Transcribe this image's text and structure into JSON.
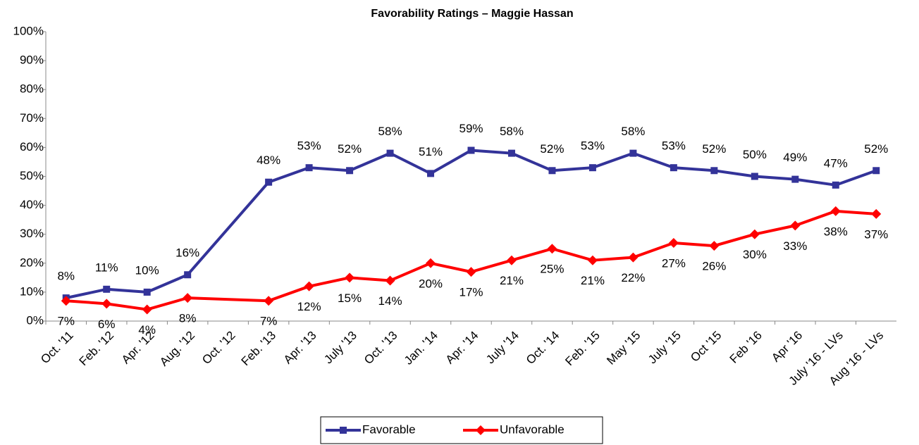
{
  "chart_data": {
    "type": "line",
    "title": "Favorability Ratings – Maggie Hassan",
    "categories": [
      "Oct. '11",
      "Feb. '12",
      "Apr. '12",
      "Aug. '12",
      "Oct. '12",
      "Feb. '13",
      "Apr. '13",
      "July '13",
      "Oct. '13",
      "Jan. '14",
      "Apr. '14",
      "July '14",
      "Oct. '14",
      "Feb. '15",
      "May '15",
      "July '15",
      "Oct '15",
      "Feb '16",
      "Apr '16",
      "July '16 - LVs",
      "Aug '16 - LVs"
    ],
    "series": [
      {
        "name": "Favorable",
        "color": "#333399",
        "marker": "square",
        "values": [
          8,
          11,
          10,
          16,
          null,
          48,
          53,
          52,
          58,
          51,
          59,
          58,
          52,
          53,
          58,
          53,
          52,
          50,
          49,
          47,
          52
        ],
        "value_labels": [
          "8%",
          "11%",
          "10%",
          "16%",
          null,
          "48%",
          "53%",
          "52%",
          "58%",
          "51%",
          "59%",
          "58%",
          "52%",
          "53%",
          "58%",
          "53%",
          "52%",
          "50%",
          "49%",
          "47%",
          "52%"
        ]
      },
      {
        "name": "Unfavorable",
        "color": "#ff0000",
        "marker": "diamond",
        "values": [
          7,
          6,
          4,
          8,
          null,
          7,
          12,
          15,
          14,
          20,
          17,
          21,
          25,
          21,
          22,
          27,
          26,
          30,
          33,
          38,
          37
        ],
        "value_labels": [
          "7%",
          "6%",
          "4%",
          "8%",
          null,
          "7%",
          "12%",
          "15%",
          "14%",
          "20%",
          "17%",
          "21%",
          "25%",
          "21%",
          "22%",
          "27%",
          "26%",
          "30%",
          "33%",
          "38%",
          "37%"
        ]
      }
    ],
    "ylim": [
      0,
      100
    ],
    "yticks": [
      {
        "value": 0,
        "label": "0%"
      },
      {
        "value": 10,
        "label": "10%"
      },
      {
        "value": 20,
        "label": "20%"
      },
      {
        "value": 30,
        "label": "30%"
      },
      {
        "value": 40,
        "label": "40%"
      },
      {
        "value": 50,
        "label": "50%"
      },
      {
        "value": 60,
        "label": "60%"
      },
      {
        "value": 70,
        "label": "70%"
      },
      {
        "value": 80,
        "label": "80%"
      },
      {
        "value": 90,
        "label": "90%"
      },
      {
        "value": 100,
        "label": "100%"
      }
    ],
    "grid": false,
    "legend": "bottom"
  }
}
